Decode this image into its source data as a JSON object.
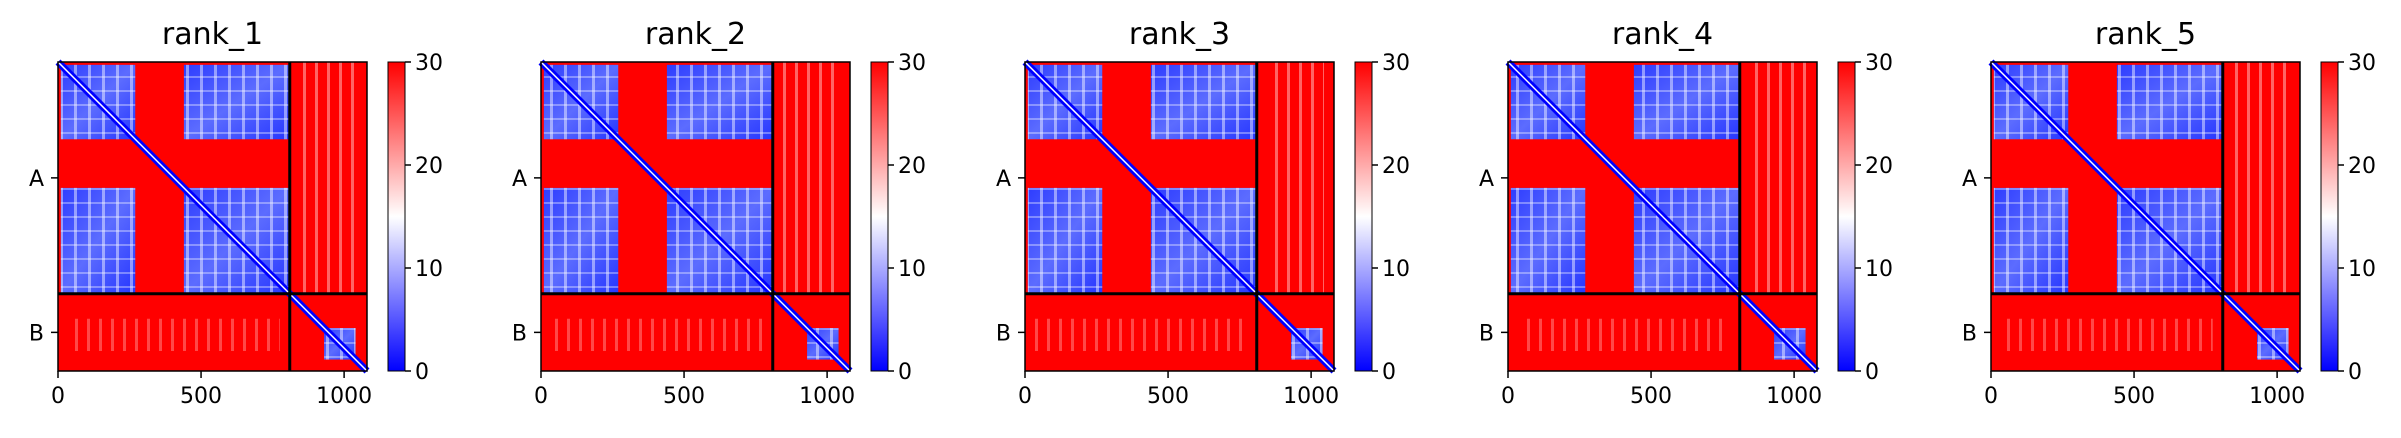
{
  "chart_data": [
    {
      "type": "heatmap",
      "title": "rank_1",
      "xlim": [
        0,
        1080
      ],
      "x_ticks": [
        "0",
        "500",
        "1000"
      ],
      "y_ticks": [
        "A",
        "B"
      ],
      "chain_boundary": 810,
      "colorbar": {
        "range": [
          0,
          30
        ],
        "ticks": [
          "0",
          "10",
          "20",
          "30"
        ],
        "colors": [
          "#0000ff",
          "#ffffff",
          "#ff0000"
        ]
      },
      "low_blocks": [
        {
          "x": [
            10,
            270
          ],
          "y": [
            10,
            270
          ]
        },
        {
          "x": [
            440,
            810
          ],
          "y": [
            10,
            270
          ]
        },
        {
          "x": [
            10,
            270
          ],
          "y": [
            440,
            810
          ]
        },
        {
          "x": [
            440,
            810
          ],
          "y": [
            440,
            810
          ]
        },
        {
          "x": [
            930,
            1040
          ],
          "y": [
            930,
            1040
          ]
        }
      ]
    },
    {
      "type": "heatmap",
      "title": "rank_2",
      "xlim": [
        0,
        1080
      ],
      "x_ticks": [
        "0",
        "500",
        "1000"
      ],
      "y_ticks": [
        "A",
        "B"
      ],
      "chain_boundary": 810,
      "colorbar": {
        "range": [
          0,
          30
        ],
        "ticks": [
          "0",
          "10",
          "20",
          "30"
        ],
        "colors": [
          "#0000ff",
          "#ffffff",
          "#ff0000"
        ]
      },
      "low_blocks": [
        {
          "x": [
            10,
            270
          ],
          "y": [
            10,
            270
          ]
        },
        {
          "x": [
            440,
            810
          ],
          "y": [
            10,
            270
          ]
        },
        {
          "x": [
            10,
            270
          ],
          "y": [
            440,
            810
          ]
        },
        {
          "x": [
            440,
            810
          ],
          "y": [
            440,
            810
          ]
        },
        {
          "x": [
            930,
            1040
          ],
          "y": [
            930,
            1040
          ]
        }
      ]
    },
    {
      "type": "heatmap",
      "title": "rank_3",
      "xlim": [
        0,
        1080
      ],
      "x_ticks": [
        "0",
        "500",
        "1000"
      ],
      "y_ticks": [
        "A",
        "B"
      ],
      "chain_boundary": 810,
      "colorbar": {
        "range": [
          0,
          30
        ],
        "ticks": [
          "0",
          "10",
          "20",
          "30"
        ],
        "colors": [
          "#0000ff",
          "#ffffff",
          "#ff0000"
        ]
      },
      "low_blocks": [
        {
          "x": [
            10,
            270
          ],
          "y": [
            10,
            270
          ]
        },
        {
          "x": [
            440,
            810
          ],
          "y": [
            10,
            270
          ]
        },
        {
          "x": [
            10,
            270
          ],
          "y": [
            440,
            810
          ]
        },
        {
          "x": [
            440,
            810
          ],
          "y": [
            440,
            810
          ]
        },
        {
          "x": [
            930,
            1040
          ],
          "y": [
            930,
            1040
          ]
        }
      ]
    },
    {
      "type": "heatmap",
      "title": "rank_4",
      "xlim": [
        0,
        1080
      ],
      "x_ticks": [
        "0",
        "500",
        "1000"
      ],
      "y_ticks": [
        "A",
        "B"
      ],
      "chain_boundary": 810,
      "colorbar": {
        "range": [
          0,
          30
        ],
        "ticks": [
          "0",
          "10",
          "20",
          "30"
        ],
        "colors": [
          "#0000ff",
          "#ffffff",
          "#ff0000"
        ]
      },
      "low_blocks": [
        {
          "x": [
            10,
            270
          ],
          "y": [
            10,
            270
          ]
        },
        {
          "x": [
            440,
            810
          ],
          "y": [
            10,
            270
          ]
        },
        {
          "x": [
            10,
            270
          ],
          "y": [
            440,
            810
          ]
        },
        {
          "x": [
            440,
            810
          ],
          "y": [
            440,
            810
          ]
        },
        {
          "x": [
            930,
            1040
          ],
          "y": [
            930,
            1040
          ]
        }
      ]
    },
    {
      "type": "heatmap",
      "title": "rank_5",
      "xlim": [
        0,
        1080
      ],
      "x_ticks": [
        "0",
        "500",
        "1000"
      ],
      "y_ticks": [
        "A",
        "B"
      ],
      "chain_boundary": 810,
      "colorbar": {
        "range": [
          0,
          30
        ],
        "ticks": [
          "0",
          "10",
          "20",
          "30"
        ],
        "colors": [
          "#0000ff",
          "#ffffff",
          "#ff0000"
        ]
      },
      "low_blocks": [
        {
          "x": [
            10,
            270
          ],
          "y": [
            10,
            270
          ]
        },
        {
          "x": [
            440,
            810
          ],
          "y": [
            10,
            270
          ]
        },
        {
          "x": [
            10,
            270
          ],
          "y": [
            440,
            810
          ]
        },
        {
          "x": [
            440,
            810
          ],
          "y": [
            440,
            810
          ]
        },
        {
          "x": [
            930,
            1040
          ],
          "y": [
            930,
            1040
          ]
        }
      ]
    }
  ]
}
